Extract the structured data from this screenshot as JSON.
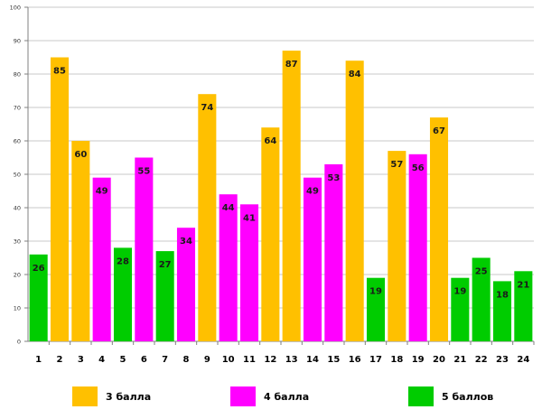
{
  "chart_data": {
    "type": "bar",
    "title": "",
    "xlabel": "",
    "ylabel": "",
    "ylim": [
      0,
      100
    ],
    "yticks": [
      0,
      10,
      20,
      30,
      40,
      50,
      60,
      70,
      80,
      90,
      100
    ],
    "grid": true,
    "categories": [
      "1",
      "2",
      "3",
      "4",
      "5",
      "6",
      "7",
      "8",
      "9",
      "10",
      "11",
      "12",
      "13",
      "14",
      "15",
      "16",
      "17",
      "18",
      "19",
      "20",
      "21",
      "22",
      "23",
      "24"
    ],
    "values": [
      26,
      85,
      60,
      49,
      28,
      55,
      27,
      34,
      74,
      44,
      41,
      64,
      87,
      49,
      53,
      84,
      19,
      57,
      56,
      67,
      19,
      25,
      18,
      21
    ],
    "groups": [
      "5 баллов",
      "3 балла",
      "3 балла",
      "4 балла",
      "5 баллов",
      "4 балла",
      "5 баллов",
      "4 балла",
      "3 балла",
      "4 балла",
      "4 балла",
      "3 балла",
      "3 балла",
      "4 балла",
      "4 балла",
      "3 балла",
      "5 баллов",
      "3 балла",
      "4 балла",
      "3 балла",
      "5 баллов",
      "5 баллов",
      "5 баллов",
      "5 баллов"
    ],
    "legend": [
      {
        "label": "3 балла",
        "color": "#FFC000"
      },
      {
        "label": "4 балла",
        "color": "#FF00FF"
      },
      {
        "label": "5 баллов",
        "color": "#00CC00"
      }
    ],
    "legend_position": "bottom"
  }
}
